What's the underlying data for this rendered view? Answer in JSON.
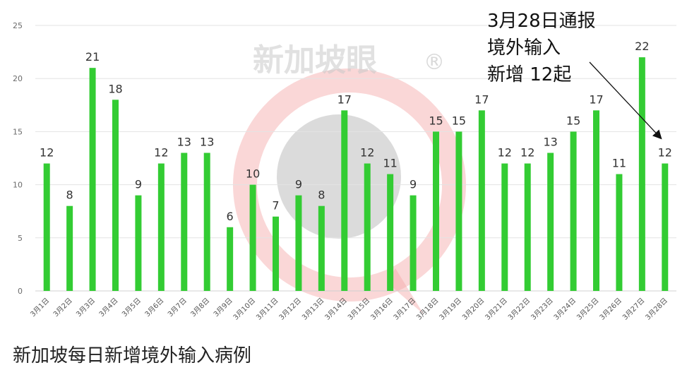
{
  "chart_data": {
    "type": "bar",
    "title": "新加坡每日新增境外输入病例",
    "xlabel": "",
    "ylabel": "",
    "ylim": [
      0,
      25
    ],
    "yticks": [
      0,
      5,
      10,
      15,
      20,
      25
    ],
    "grid": true,
    "legend": "none",
    "categories": [
      "3月1日",
      "3月2日",
      "3月3日",
      "3月4日",
      "3月5日",
      "3月6日",
      "3月7日",
      "3月8日",
      "3月9日",
      "3月10日",
      "3月11日",
      "3月12日",
      "3月13日",
      "3月14日",
      "3月15日",
      "3月16日",
      "3月17日",
      "3月18日",
      "3月19日",
      "3月20日",
      "3月21日",
      "3月22日",
      "3月23日",
      "3月24日",
      "3月25日",
      "3月26日",
      "3月27日",
      "3月28日"
    ],
    "values": [
      12,
      8,
      21,
      18,
      9,
      12,
      13,
      13,
      6,
      10,
      7,
      9,
      8,
      17,
      12,
      11,
      9,
      15,
      15,
      17,
      12,
      12,
      13,
      15,
      17,
      11,
      22,
      12
    ],
    "bar_color": "#33cc33",
    "annotation": {
      "lines": [
        "3月28日通报",
        "境外输入",
        "新增 12起"
      ],
      "target_category": "3月28日"
    }
  },
  "watermark": {
    "text": "新加坡眼",
    "mark": "®"
  }
}
